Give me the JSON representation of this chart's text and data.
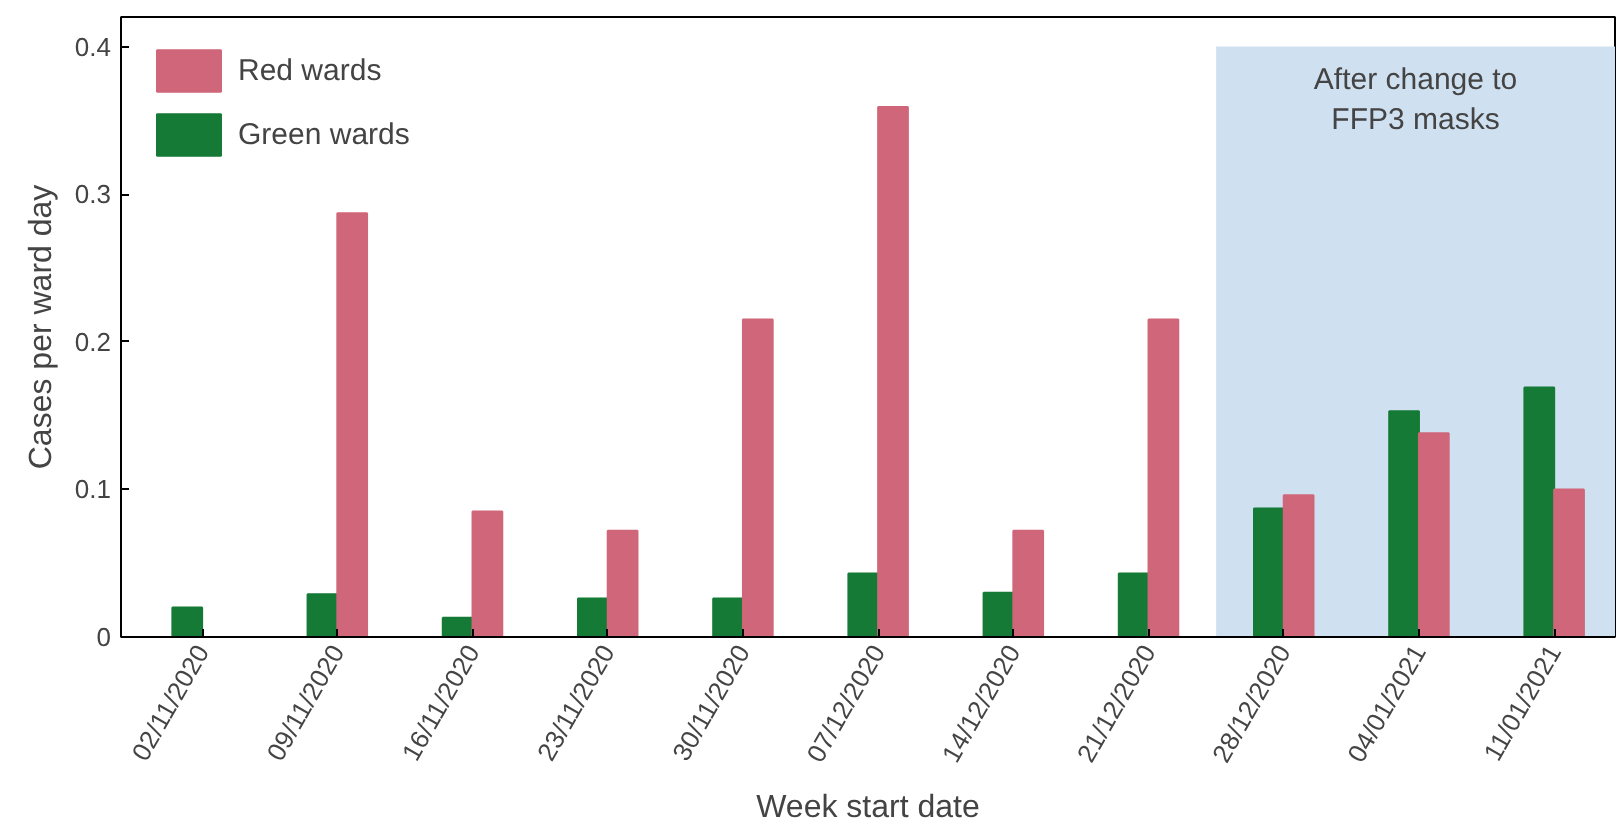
{
  "chart_data": {
    "type": "bar",
    "xlabel": "Week start date",
    "ylabel": "Cases per ward day",
    "categories": [
      "02/11/2020",
      "09/11/2020",
      "16/11/2020",
      "23/11/2020",
      "30/11/2020",
      "07/12/2020",
      "14/12/2020",
      "21/12/2020",
      "28/12/2020",
      "04/01/2021",
      "11/01/2021"
    ],
    "series": [
      {
        "name": "Green wards",
        "color": "#157a35",
        "values": [
          0.02,
          0.029,
          0.013,
          0.026,
          0.026,
          0.043,
          0.03,
          0.043,
          0.087,
          0.153,
          0.169
        ]
      },
      {
        "name": "Red wards",
        "color": "#cf6679",
        "values": [
          0,
          0.287,
          0.085,
          0.072,
          0.215,
          0.359,
          0.072,
          0.215,
          0.096,
          0.138,
          0.1
        ]
      }
    ],
    "ylim": [
      0,
      0.42
    ],
    "yticks": [
      0,
      0.1,
      0.2,
      0.3,
      0.4
    ],
    "bands": [
      {
        "axis": "x",
        "from": "28/12/2020",
        "to": "11/01/2021",
        "label": "After change to\nFFP3 masks",
        "color": "#cfe0f0"
      }
    ],
    "legend": "top left",
    "grid": false
  }
}
